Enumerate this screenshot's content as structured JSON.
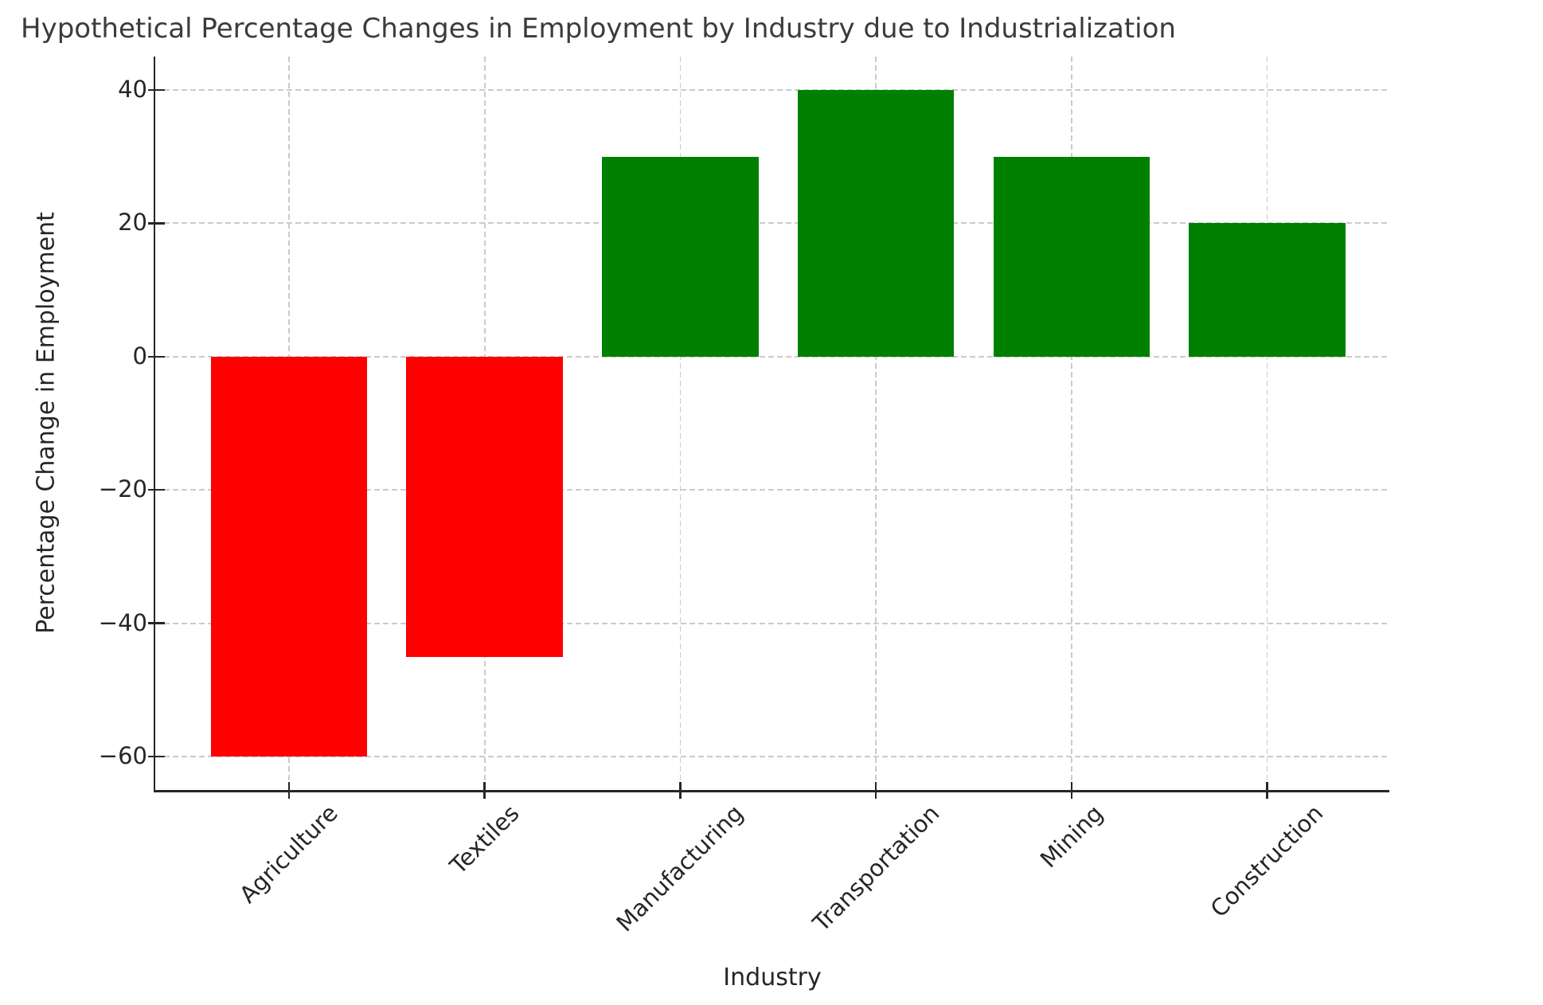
{
  "chart_data": {
    "type": "bar",
    "title": "Hypothetical Percentage Changes in Employment by Industry due to Industrialization",
    "xlabel": "Industry",
    "ylabel": "Percentage Change in Employment",
    "categories": [
      "Agriculture",
      "Textiles",
      "Manufacturing",
      "Transportation",
      "Mining",
      "Construction"
    ],
    "values": [
      -60,
      -45,
      30,
      40,
      30,
      20
    ],
    "positive_color": "#008000",
    "negative_color": "#ff0000",
    "ylim": [
      -65,
      45
    ],
    "yticks": [
      40,
      20,
      0,
      -20,
      -40,
      -60
    ],
    "ytick_labels": [
      "40",
      "20",
      "0",
      "−20",
      "−40",
      "−60"
    ],
    "grid": true,
    "grid_style": "dashed",
    "grid_color": "#cbcbcb",
    "axis_color": "#262626",
    "tick_label_color": "#262626",
    "title_color": "#3b3b3b",
    "legend": "none"
  }
}
